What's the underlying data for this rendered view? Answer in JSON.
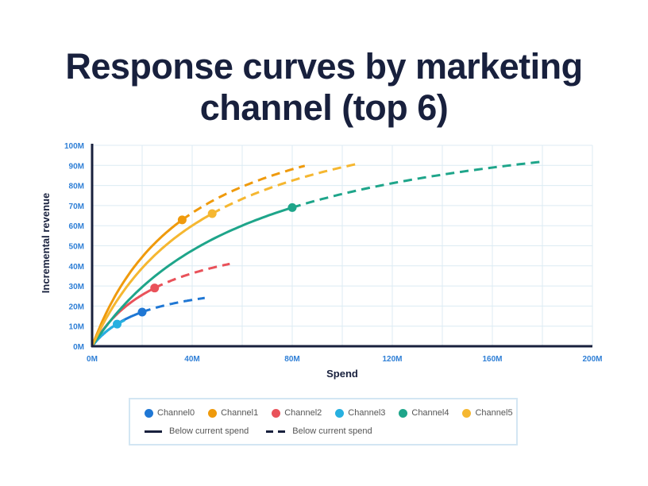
{
  "chart_data": {
    "type": "line",
    "title": "Response curves by marketing channel (top 6)",
    "xlabel": "Spend",
    "ylabel": "Incremental revenue",
    "xlim": [
      0,
      200
    ],
    "ylim": [
      0,
      100
    ],
    "unit": "M",
    "x_ticks": [
      "0M",
      "40M",
      "80M",
      "120M",
      "160M",
      "200M"
    ],
    "x_tick_values": [
      0,
      40,
      80,
      120,
      160,
      200
    ],
    "y_ticks": [
      "0M",
      "10M",
      "20M",
      "30M",
      "40M",
      "50M",
      "60M",
      "70M",
      "80M",
      "90M",
      "100M"
    ],
    "y_tick_values": [
      0,
      10,
      20,
      30,
      40,
      50,
      60,
      70,
      80,
      90,
      100
    ],
    "grid": true,
    "series": [
      {
        "name": "Channel0",
        "color": "#1f77d4",
        "vmax": 35.8,
        "k": 22.1,
        "current_spend": 20,
        "current_revenue": 17,
        "max_spend": 45
      },
      {
        "name": "Channel1",
        "color": "#ef9a0c",
        "vmax": 131,
        "k": 39,
        "current_spend": 36,
        "current_revenue": 63,
        "max_spend": 85
      },
      {
        "name": "Channel2",
        "color": "#e9525a",
        "vmax": 62.6,
        "k": 29,
        "current_spend": 25,
        "current_revenue": 29,
        "max_spend": 55
      },
      {
        "name": "Channel3",
        "color": "#27b0e0",
        "vmax": 30.7,
        "k": 17.9,
        "current_spend": 10,
        "current_revenue": 11,
        "max_spend": 15
      },
      {
        "name": "Channel4",
        "color": "#1ea58a",
        "vmax": 125,
        "k": 64.9,
        "current_spend": 80,
        "current_revenue": 69,
        "max_spend": 181
      },
      {
        "name": "Channel5",
        "color": "#f5b731",
        "vmax": 131.6,
        "k": 47.7,
        "current_spend": 48,
        "current_revenue": 66,
        "max_spend": 107
      }
    ],
    "line_styles": [
      {
        "style": "solid",
        "label": "Below current spend"
      },
      {
        "style": "dashed",
        "label": "Below current spend"
      }
    ],
    "legend_position": "bottom"
  }
}
